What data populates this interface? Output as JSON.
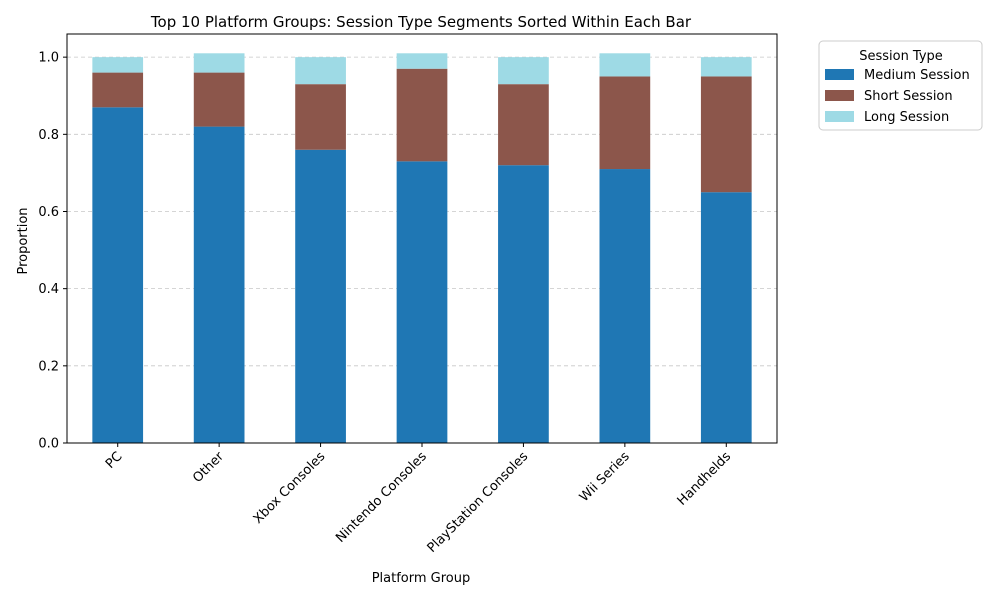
{
  "chart_data": {
    "type": "bar",
    "stacked": true,
    "title": "Top 10 Platform Groups: Session Type Segments Sorted Within Each Bar",
    "xlabel": "Platform Group",
    "ylabel": "Proportion",
    "ylim": [
      0,
      1.06
    ],
    "yticks": [
      "0.0",
      "0.2",
      "0.4",
      "0.6",
      "0.8",
      "1.0"
    ],
    "grid": "y-dashed",
    "categories": [
      "PC",
      "Other",
      "Xbox Consoles",
      "Nintendo Consoles",
      "PlayStation Consoles",
      "Wii Series",
      "Handhelds"
    ],
    "series": [
      {
        "name": "Medium Session",
        "color": "#1f77b4",
        "values": [
          0.87,
          0.82,
          0.76,
          0.73,
          0.72,
          0.71,
          0.65
        ]
      },
      {
        "name": "Short Session",
        "color": "#8c564b",
        "values": [
          0.09,
          0.14,
          0.17,
          0.24,
          0.21,
          0.24,
          0.3
        ]
      },
      {
        "name": "Long Session",
        "color": "#9edae5",
        "values": [
          0.04,
          0.05,
          0.07,
          0.04,
          0.07,
          0.06,
          0.05
        ]
      }
    ],
    "legend": {
      "title": "Session Type",
      "placement": "outside-top-right"
    }
  }
}
